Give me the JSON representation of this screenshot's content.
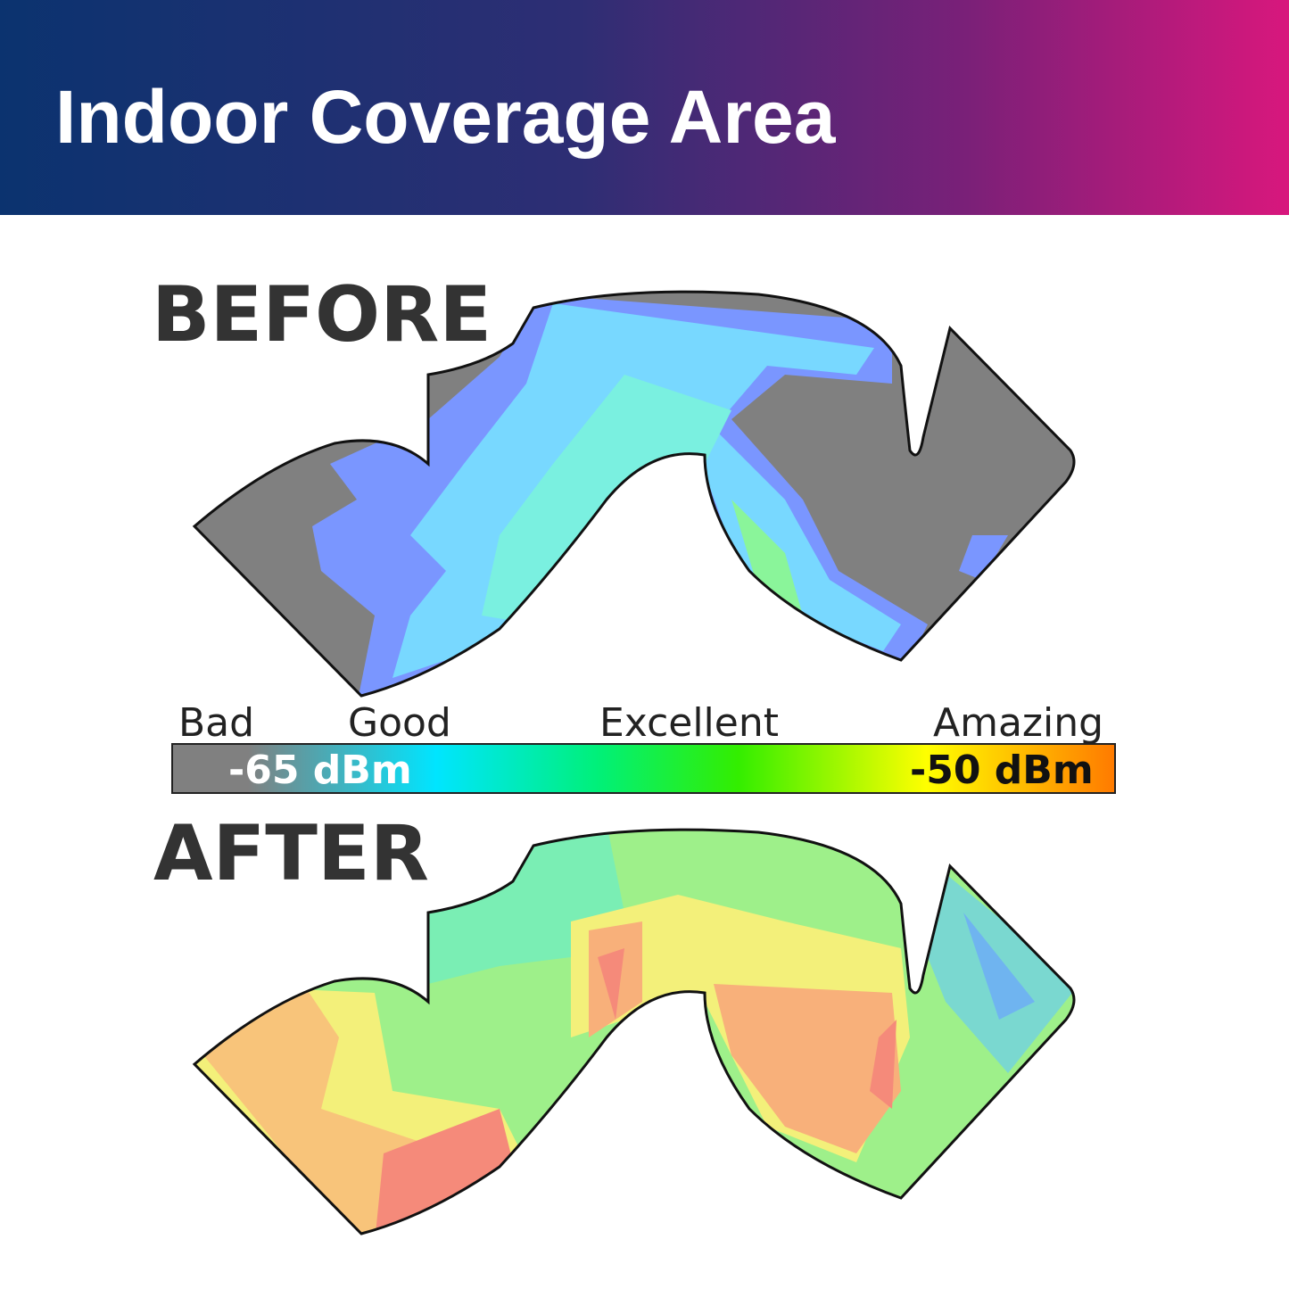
{
  "header": {
    "title": "Indoor Coverage Area"
  },
  "before": {
    "label": "BEFORE"
  },
  "after": {
    "label": "AFTER"
  },
  "legend": {
    "levels": [
      "Bad",
      "Good",
      "Excellent",
      "Amazing"
    ],
    "low": "-65 dBm",
    "high": "-50 dBm"
  }
}
